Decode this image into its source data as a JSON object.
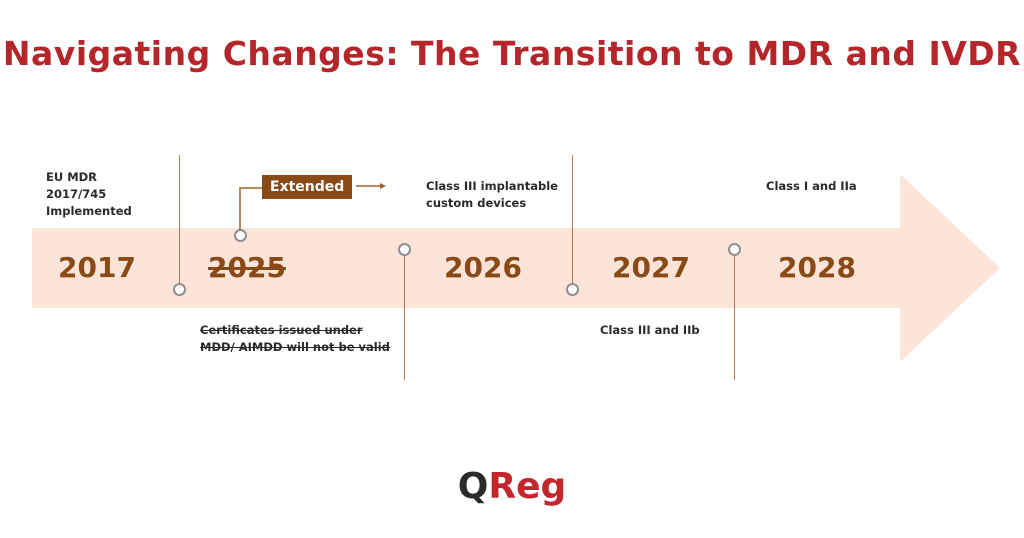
{
  "title": "Navigating Changes: The Transition to MDR and IVDR",
  "colors": {
    "title": "#b5262b",
    "arrow_fill": "#fde4d8",
    "year_text": "#8a4a17",
    "badge_bg": "#8a4a17",
    "logo_dark": "#2a2a2a",
    "logo_red": "#c1272d"
  },
  "timeline": {
    "years": [
      {
        "label": "2017",
        "struck": false
      },
      {
        "label": "2025",
        "struck": true
      },
      {
        "label": "2026",
        "struck": false
      },
      {
        "label": "2027",
        "struck": false
      },
      {
        "label": "2028",
        "struck": false
      }
    ],
    "milestones": {
      "eu_mdr": [
        "EU MDR",
        "2017/745",
        "Implemented"
      ],
      "extended_badge": "Extended",
      "certificates": [
        "Certificates issued under",
        "MDD/ AIMDD will not be valid"
      ],
      "class_iii_implantable": [
        "Class III implantable",
        "custom devices"
      ],
      "class_iii_iib": [
        "Class III and IIb"
      ],
      "class_i_iia": [
        "Class I and IIa"
      ]
    }
  },
  "logo": {
    "q": "Q",
    "reg": "Reg"
  }
}
